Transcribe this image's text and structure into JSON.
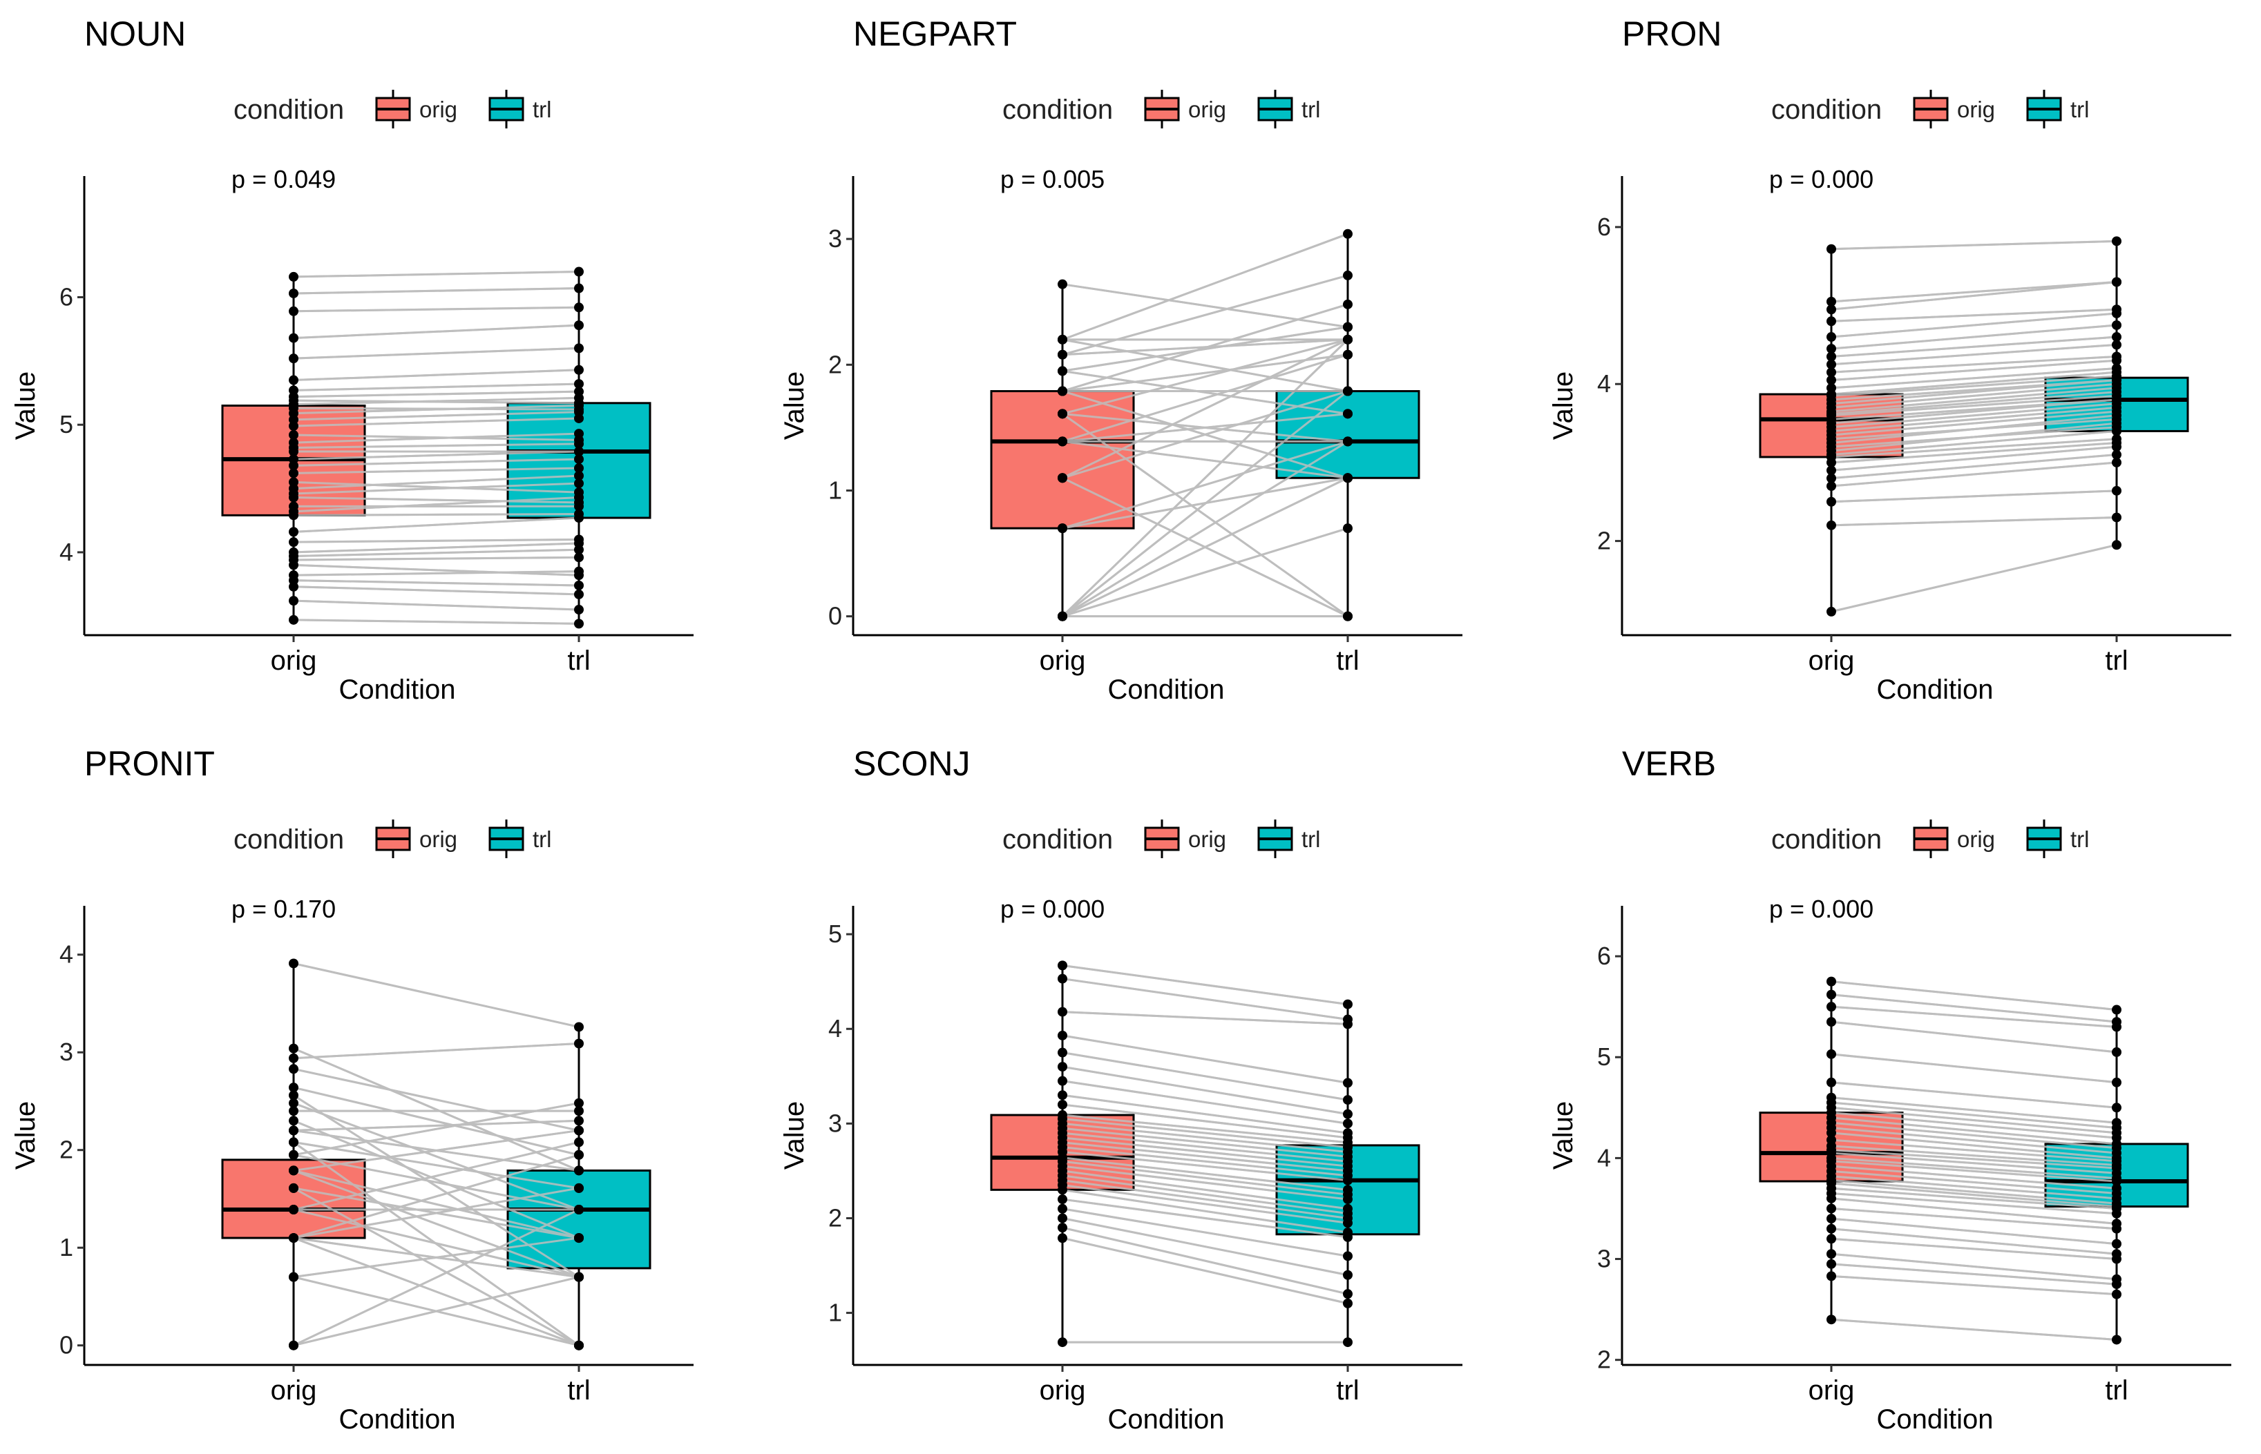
{
  "figure": {
    "condition_label": "condition",
    "levels": [
      "orig",
      "trl"
    ],
    "colors": {
      "orig": "#F8766D",
      "trl": "#00BFC4",
      "pair_line": "#BEBEBE",
      "point": "#000000"
    },
    "xlabel": "Condition",
    "ylabel": "Value"
  },
  "chart_data": [
    {
      "type": "box",
      "title": "NOUN",
      "p_label": "p = 0.049",
      "categories": [
        "orig",
        "trl"
      ],
      "ylim": [
        3.35,
        6.95
      ],
      "yticks": [
        4,
        5,
        6
      ],
      "boxes": {
        "orig": {
          "q1": 4.29,
          "median": 4.73,
          "q3": 5.15,
          "min": 3.47,
          "max": 6.16
        },
        "trl": {
          "q1": 4.27,
          "median": 4.79,
          "q3": 5.17,
          "min": 3.44,
          "max": 6.2
        }
      },
      "pairs": [
        [
          3.47,
          3.44
        ],
        [
          3.62,
          3.55
        ],
        [
          3.73,
          3.67
        ],
        [
          3.78,
          3.74
        ],
        [
          3.82,
          3.85
        ],
        [
          3.9,
          3.82
        ],
        [
          3.94,
          3.96
        ],
        [
          3.97,
          4.02
        ],
        [
          4.0,
          4.07
        ],
        [
          4.08,
          4.1
        ],
        [
          4.16,
          4.27
        ],
        [
          4.29,
          4.3
        ],
        [
          4.32,
          4.43
        ],
        [
          4.36,
          4.36
        ],
        [
          4.43,
          4.39
        ],
        [
          4.46,
          4.54
        ],
        [
          4.5,
          4.6
        ],
        [
          4.55,
          4.47
        ],
        [
          4.62,
          4.66
        ],
        [
          4.68,
          4.73
        ],
        [
          4.73,
          4.79
        ],
        [
          4.79,
          4.79
        ],
        [
          4.82,
          4.85
        ],
        [
          4.86,
          4.93
        ],
        [
          4.92,
          4.88
        ],
        [
          4.99,
          5.05
        ],
        [
          5.04,
          5.1
        ],
        [
          5.09,
          5.15
        ],
        [
          5.13,
          5.12
        ],
        [
          5.16,
          5.21
        ],
        [
          5.19,
          5.17
        ],
        [
          5.22,
          5.26
        ],
        [
          5.27,
          5.32
        ],
        [
          5.35,
          5.43
        ],
        [
          5.52,
          5.6
        ],
        [
          5.68,
          5.78
        ],
        [
          5.89,
          5.92
        ],
        [
          6.03,
          6.07
        ],
        [
          6.16,
          6.2
        ]
      ]
    },
    {
      "type": "box",
      "title": "NEGPART",
      "p_label": "p = 0.005",
      "categories": [
        "orig",
        "trl"
      ],
      "ylim": [
        -0.15,
        3.5
      ],
      "yticks": [
        0,
        1,
        2,
        3
      ],
      "boxes": {
        "orig": {
          "q1": 0.7,
          "median": 1.39,
          "q3": 1.79,
          "min": 0.0,
          "max": 2.64
        },
        "trl": {
          "q1": 1.1,
          "median": 1.39,
          "q3": 1.79,
          "min": 0.0,
          "max": 3.04
        }
      },
      "pairs": [
        [
          0.0,
          1.79
        ],
        [
          0.0,
          2.2
        ],
        [
          0.0,
          1.39
        ],
        [
          0.0,
          1.1
        ],
        [
          0.0,
          0.7
        ],
        [
          0.0,
          0.0
        ],
        [
          0.7,
          1.39
        ],
        [
          0.7,
          1.1
        ],
        [
          1.1,
          1.79
        ],
        [
          1.1,
          2.2
        ],
        [
          1.1,
          0.0
        ],
        [
          1.39,
          1.39
        ],
        [
          1.39,
          1.61
        ],
        [
          1.39,
          2.08
        ],
        [
          1.39,
          1.1
        ],
        [
          1.61,
          2.2
        ],
        [
          1.61,
          1.39
        ],
        [
          1.61,
          0.0
        ],
        [
          1.79,
          2.08
        ],
        [
          1.79,
          1.79
        ],
        [
          1.79,
          2.48
        ],
        [
          1.79,
          1.1
        ],
        [
          1.95,
          2.3
        ],
        [
          1.95,
          1.61
        ],
        [
          2.08,
          2.71
        ],
        [
          2.08,
          2.2
        ],
        [
          2.2,
          1.79
        ],
        [
          2.2,
          2.2
        ],
        [
          2.2,
          3.04
        ],
        [
          2.64,
          2.3
        ]
      ]
    },
    {
      "type": "box",
      "title": "PRON",
      "p_label": "p = 0.000",
      "categories": [
        "orig",
        "trl"
      ],
      "ylim": [
        0.8,
        6.65
      ],
      "yticks": [
        2,
        4,
        6
      ],
      "boxes": {
        "orig": {
          "q1": 3.07,
          "median": 3.55,
          "q3": 3.87,
          "min": 1.1,
          "max": 5.72
        },
        "trl": {
          "q1": 3.4,
          "median": 3.8,
          "q3": 4.08,
          "min": 1.95,
          "max": 5.82
        }
      },
      "pairs": [
        [
          1.1,
          1.95
        ],
        [
          2.2,
          2.3
        ],
        [
          2.5,
          2.64
        ],
        [
          2.7,
          3.0
        ],
        [
          2.8,
          3.1
        ],
        [
          2.9,
          3.2
        ],
        [
          3.0,
          3.25
        ],
        [
          3.07,
          3.3
        ],
        [
          3.1,
          3.4
        ],
        [
          3.15,
          3.5
        ],
        [
          3.2,
          3.45
        ],
        [
          3.25,
          3.6
        ],
        [
          3.3,
          3.55
        ],
        [
          3.35,
          3.65
        ],
        [
          3.4,
          3.7
        ],
        [
          3.45,
          3.75
        ],
        [
          3.5,
          3.8
        ],
        [
          3.55,
          3.8
        ],
        [
          3.6,
          3.85
        ],
        [
          3.62,
          3.9
        ],
        [
          3.65,
          3.95
        ],
        [
          3.7,
          4.0
        ],
        [
          3.75,
          4.05
        ],
        [
          3.8,
          4.05
        ],
        [
          3.85,
          4.1
        ],
        [
          3.87,
          4.15
        ],
        [
          3.95,
          4.2
        ],
        [
          4.05,
          4.3
        ],
        [
          4.15,
          4.35
        ],
        [
          4.25,
          4.5
        ],
        [
          4.35,
          4.6
        ],
        [
          4.45,
          4.75
        ],
        [
          4.6,
          4.9
        ],
        [
          4.8,
          4.95
        ],
        [
          4.95,
          5.3
        ],
        [
          5.05,
          5.3
        ],
        [
          5.72,
          5.82
        ]
      ]
    },
    {
      "type": "box",
      "title": "PRONIT",
      "p_label": "p = 0.170",
      "categories": [
        "orig",
        "trl"
      ],
      "ylim": [
        -0.2,
        4.5
      ],
      "yticks": [
        0,
        1,
        2,
        3,
        4
      ],
      "boxes": {
        "orig": {
          "q1": 1.1,
          "median": 1.39,
          "q3": 1.9,
          "min": 0.0,
          "max": 3.91
        },
        "trl": {
          "q1": 0.79,
          "median": 1.39,
          "q3": 1.79,
          "min": 0.0,
          "max": 3.26
        }
      },
      "pairs": [
        [
          0.0,
          0.7
        ],
        [
          0.0,
          1.39
        ],
        [
          0.7,
          0.0
        ],
        [
          0.7,
          1.1
        ],
        [
          1.1,
          0.0
        ],
        [
          1.1,
          0.7
        ],
        [
          1.1,
          1.95
        ],
        [
          1.1,
          1.61
        ],
        [
          1.39,
          2.08
        ],
        [
          1.39,
          0.7
        ],
        [
          1.39,
          1.39
        ],
        [
          1.61,
          0.0
        ],
        [
          1.61,
          1.1
        ],
        [
          1.79,
          2.2
        ],
        [
          1.79,
          1.1
        ],
        [
          1.79,
          0.7
        ],
        [
          1.95,
          1.39
        ],
        [
          1.95,
          2.48
        ],
        [
          2.08,
          1.61
        ],
        [
          2.08,
          0.0
        ],
        [
          2.2,
          1.79
        ],
        [
          2.2,
          2.3
        ],
        [
          2.3,
          1.1
        ],
        [
          2.4,
          2.4
        ],
        [
          2.48,
          1.39
        ],
        [
          2.56,
          0.7
        ],
        [
          2.64,
          1.95
        ],
        [
          2.83,
          2.2
        ],
        [
          2.94,
          3.09
        ],
        [
          3.04,
          1.79
        ],
        [
          3.91,
          3.26
        ]
      ]
    },
    {
      "type": "box",
      "title": "SCONJ",
      "p_label": "p = 0.000",
      "categories": [
        "orig",
        "trl"
      ],
      "ylim": [
        0.45,
        5.3
      ],
      "yticks": [
        1,
        2,
        3,
        4,
        5
      ],
      "boxes": {
        "orig": {
          "q1": 2.3,
          "median": 2.64,
          "q3": 3.09,
          "min": 0.69,
          "max": 4.67
        },
        "trl": {
          "q1": 1.83,
          "median": 2.4,
          "q3": 2.77,
          "min": 0.69,
          "max": 4.26
        }
      },
      "pairs": [
        [
          0.69,
          0.69
        ],
        [
          1.79,
          1.1
        ],
        [
          1.9,
          1.2
        ],
        [
          2.0,
          1.4
        ],
        [
          2.1,
          1.6
        ],
        [
          2.2,
          1.8
        ],
        [
          2.3,
          1.85
        ],
        [
          2.35,
          1.95
        ],
        [
          2.4,
          2.0
        ],
        [
          2.45,
          2.05
        ],
        [
          2.5,
          2.1
        ],
        [
          2.55,
          2.2
        ],
        [
          2.6,
          2.25
        ],
        [
          2.64,
          2.3
        ],
        [
          2.7,
          2.4
        ],
        [
          2.75,
          2.45
        ],
        [
          2.8,
          2.5
        ],
        [
          2.85,
          2.55
        ],
        [
          2.9,
          2.6
        ],
        [
          2.95,
          2.65
        ],
        [
          3.0,
          2.7
        ],
        [
          3.05,
          2.75
        ],
        [
          3.09,
          2.8
        ],
        [
          3.2,
          2.85
        ],
        [
          3.3,
          2.9
        ],
        [
          3.45,
          3.0
        ],
        [
          3.6,
          3.1
        ],
        [
          3.75,
          3.25
        ],
        [
          3.93,
          3.43
        ],
        [
          4.18,
          4.05
        ],
        [
          4.53,
          4.1
        ],
        [
          4.67,
          4.26
        ]
      ]
    },
    {
      "type": "box",
      "title": "VERB",
      "p_label": "p = 0.000",
      "categories": [
        "orig",
        "trl"
      ],
      "ylim": [
        1.95,
        6.5
      ],
      "yticks": [
        2,
        3,
        4,
        5,
        6
      ],
      "boxes": {
        "orig": {
          "q1": 3.77,
          "median": 4.05,
          "q3": 4.45,
          "min": 2.4,
          "max": 5.75
        },
        "trl": {
          "q1": 3.52,
          "median": 3.77,
          "q3": 4.14,
          "min": 2.2,
          "max": 5.47
        }
      },
      "pairs": [
        [
          2.4,
          2.2
        ],
        [
          2.83,
          2.65
        ],
        [
          2.95,
          2.75
        ],
        [
          3.05,
          2.8
        ],
        [
          3.2,
          3.0
        ],
        [
          3.3,
          3.05
        ],
        [
          3.4,
          3.15
        ],
        [
          3.5,
          3.3
        ],
        [
          3.6,
          3.35
        ],
        [
          3.65,
          3.45
        ],
        [
          3.7,
          3.5
        ],
        [
          3.75,
          3.52
        ],
        [
          3.78,
          3.55
        ],
        [
          3.82,
          3.6
        ],
        [
          3.87,
          3.65
        ],
        [
          3.92,
          3.7
        ],
        [
          3.97,
          3.77
        ],
        [
          4.0,
          3.8
        ],
        [
          4.05,
          3.85
        ],
        [
          4.08,
          3.9
        ],
        [
          4.12,
          3.93
        ],
        [
          4.18,
          3.97
        ],
        [
          4.25,
          4.0
        ],
        [
          4.3,
          4.05
        ],
        [
          4.35,
          4.1
        ],
        [
          4.4,
          4.14
        ],
        [
          4.45,
          4.2
        ],
        [
          4.5,
          4.25
        ],
        [
          4.55,
          4.3
        ],
        [
          4.6,
          4.35
        ],
        [
          4.75,
          4.5
        ],
        [
          5.03,
          4.75
        ],
        [
          5.35,
          5.05
        ],
        [
          5.5,
          5.3
        ],
        [
          5.62,
          5.35
        ],
        [
          5.75,
          5.47
        ]
      ]
    }
  ]
}
